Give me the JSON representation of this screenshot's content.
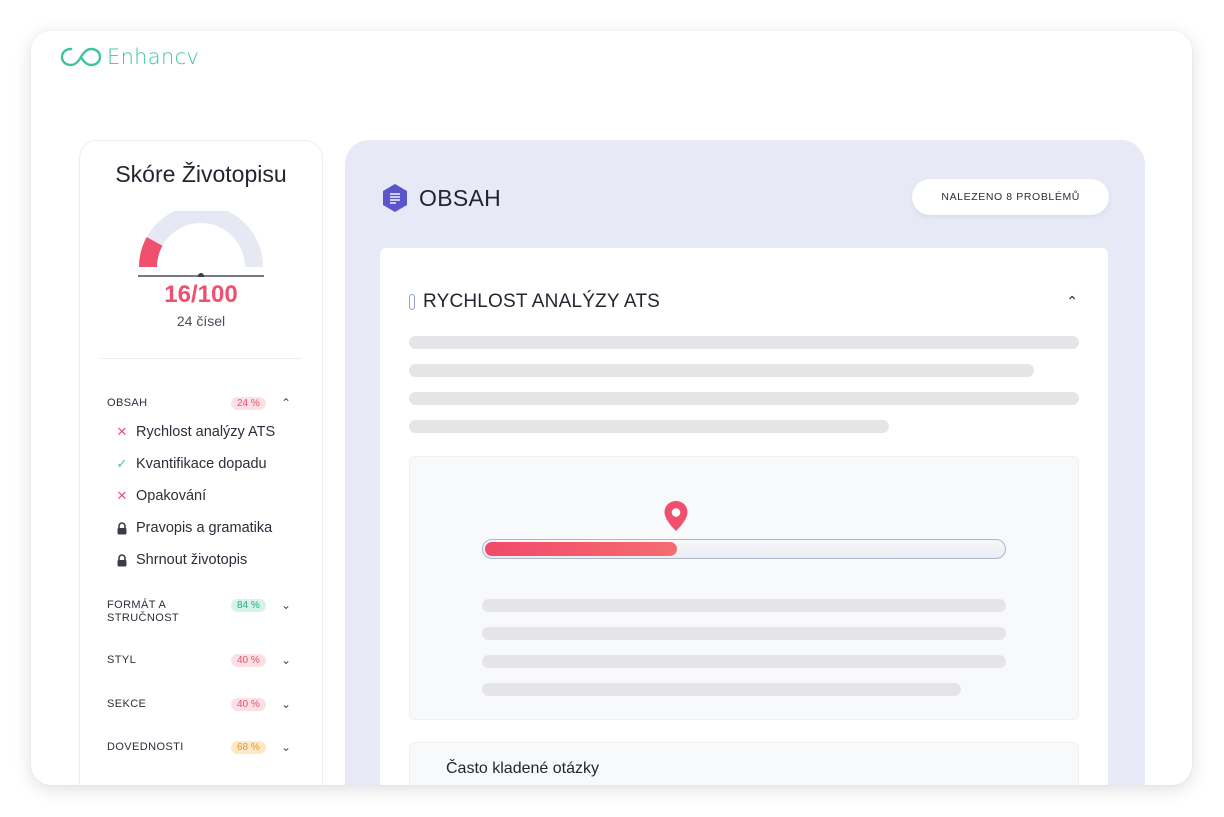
{
  "brand": {
    "name": "Enhancv",
    "color": "#3ec3a0"
  },
  "score": {
    "title": "Skóre Životopisu",
    "value_text": "16/100",
    "value": 16,
    "max": 100,
    "subtitle": "24 čísel",
    "accent": "#f0506e"
  },
  "sidebar": {
    "sections": [
      {
        "name": "OBSAH",
        "percent": "24 %",
        "tone": "red",
        "expanded": true,
        "items": [
          {
            "label": "Rychlost analýzy ATS",
            "status": "fail",
            "icon": "x-icon"
          },
          {
            "label": "Kvantifikace dopadu",
            "status": "pass",
            "icon": "check-icon"
          },
          {
            "label": "Opakování",
            "status": "fail",
            "icon": "x-icon"
          },
          {
            "label": "Pravopis a gramatika",
            "status": "locked",
            "icon": "lock-icon"
          },
          {
            "label": "Shrnout životopis",
            "status": "locked",
            "icon": "lock-icon"
          }
        ]
      },
      {
        "name": "FORMÁT A STRUČNOST",
        "percent": "84 %",
        "tone": "green",
        "expanded": false
      },
      {
        "name": "STYL",
        "percent": "40 %",
        "tone": "red",
        "expanded": false
      },
      {
        "name": "SEKCE",
        "percent": "40 %",
        "tone": "red",
        "expanded": false
      },
      {
        "name": "DOVEDNOSTI",
        "percent": "68 %",
        "tone": "orange",
        "expanded": false
      }
    ]
  },
  "panel": {
    "title": "OBSAH",
    "icon": "document-icon",
    "issues": "NALEZENO 8 PROBLÉMŮ",
    "card": {
      "title": "RYCHLOST ANALÝZY ATS",
      "meter_fraction": 0.37,
      "faq_title": "Často kladené otázky"
    }
  },
  "colors": {
    "panel_bg": "#e7eaf6",
    "danger": "#f0506e",
    "success": "#3ec3a0",
    "warning": "#e39a2c"
  }
}
